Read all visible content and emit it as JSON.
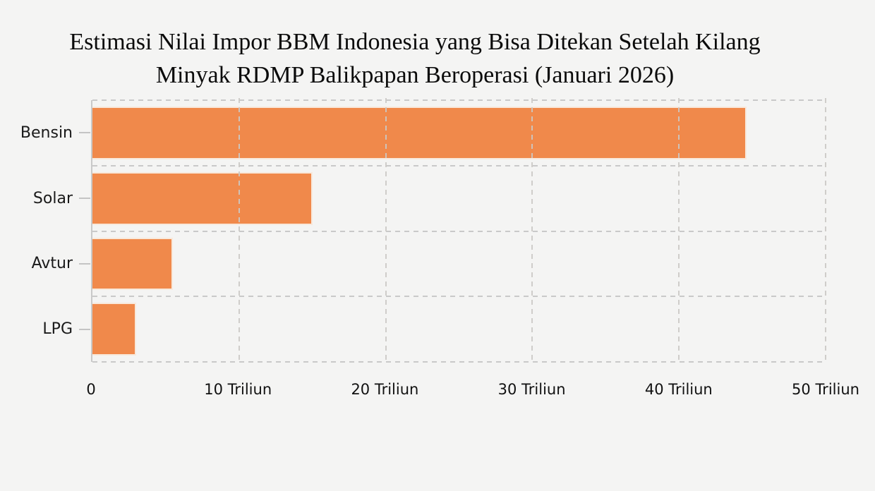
{
  "figure": {
    "background": "#f4f4f3",
    "title_line1": "Estimasi Nilai Impor BBM Indonesia yang Bisa Ditekan Setelah Kilang",
    "title_line2": "Minyak RDMP Balikpapan Beroperasi (Januari 2026)"
  },
  "chart_data": {
    "type": "bar",
    "orientation": "horizontal",
    "title": "Estimasi Nilai Impor BBM Indonesia yang Bisa Ditekan Setelah Kilang Minyak RDMP Balikpapan Beroperasi (Januari 2026)",
    "categories": [
      "Bensin",
      "Solar",
      "Avtur",
      "LPG"
    ],
    "values": [
      44.6,
      15,
      5.5,
      3
    ],
    "value_unit": "Triliun",
    "xlabel": "",
    "ylabel": "",
    "xlim": [
      0,
      50
    ],
    "x_ticks": [
      {
        "value": 0,
        "label": "0"
      },
      {
        "value": 10,
        "label": "10 Triliun"
      },
      {
        "value": 20,
        "label": "20 Triliun"
      },
      {
        "value": 30,
        "label": "30 Triliun"
      },
      {
        "value": 40,
        "label": "40 Triliun"
      },
      {
        "value": 50,
        "label": "50 Triliun"
      }
    ],
    "grid": {
      "vertical": true,
      "horizontal_band_separators": true,
      "style": "dashed",
      "color": "#c9c9c9"
    },
    "legend": null,
    "bar_color": "#F0894B",
    "bar_border_color": "#F8E9DC"
  }
}
